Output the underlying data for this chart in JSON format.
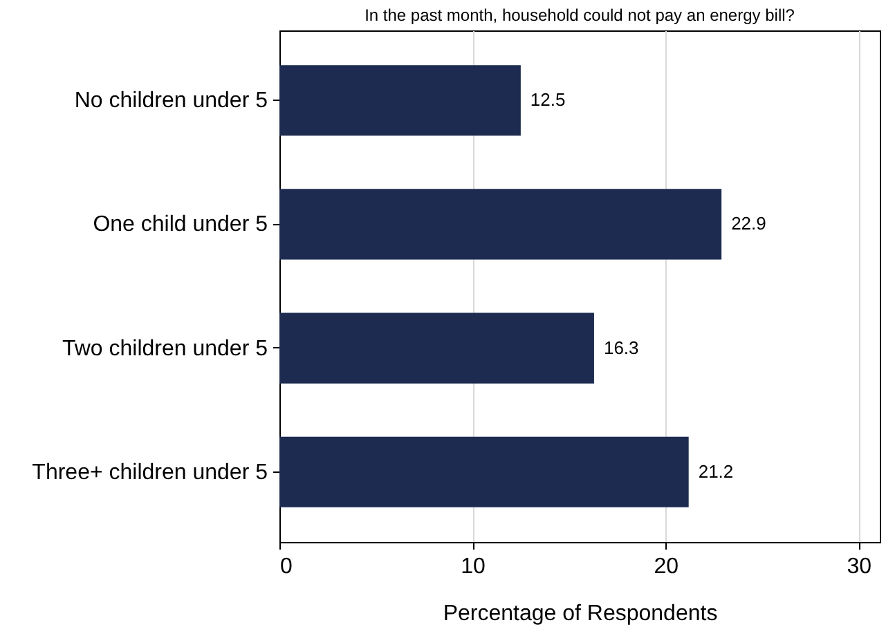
{
  "chart_data": {
    "type": "bar",
    "orientation": "horizontal",
    "title": "In the past month, household could not pay an energy bill?",
    "categories": [
      "No children under 5",
      "One child under 5",
      "Two children under 5",
      "Three+ children under 5"
    ],
    "values": [
      12.5,
      22.9,
      16.3,
      21.2
    ],
    "color": "#1c2b4f",
    "xlabel": "Percentage of Respondents",
    "xlim": [
      0,
      31.1
    ],
    "xticks": [
      0,
      10,
      20,
      30
    ],
    "grid": "x",
    "data_labels": true
  }
}
